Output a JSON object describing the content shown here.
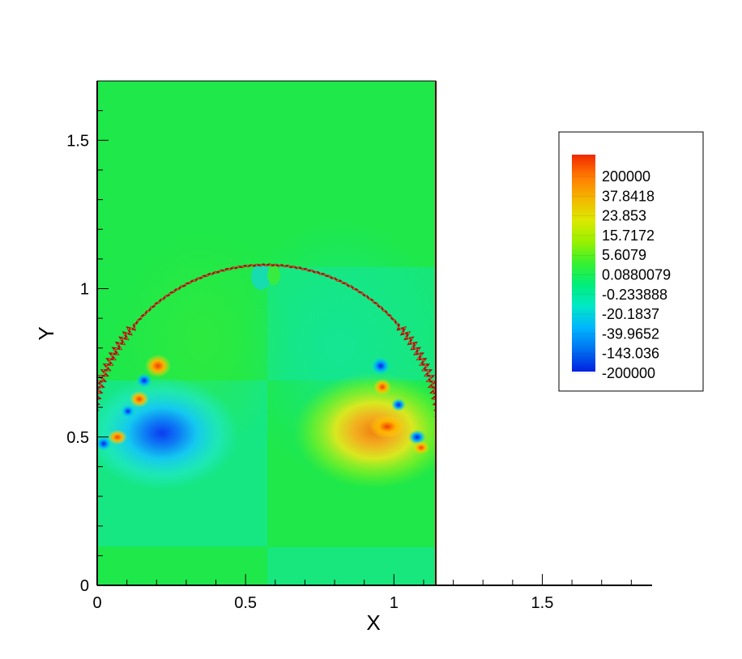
{
  "chart_data": {
    "type": "heatmap",
    "title": "",
    "xlabel": "X",
    "ylabel": "Y",
    "xlim": [
      0,
      1.87
    ],
    "ylim": [
      0,
      1.7
    ],
    "domain_x": [
      0,
      1.14
    ],
    "x_ticks": [
      "0",
      "0.5",
      "1",
      "1.5"
    ],
    "x_tick_values": [
      0,
      0.5,
      1,
      1.5
    ],
    "y_ticks": [
      "0",
      "0.5",
      "1",
      "1.5"
    ],
    "y_tick_values": [
      0,
      0.5,
      1,
      1.5
    ],
    "interface": {
      "shape": "semicircle",
      "center_x": 0.57,
      "center_y": 0.49,
      "radius": 0.59
    },
    "legend": {
      "position": "right",
      "levels": [
        "200000",
        "37.8418",
        "23.853",
        "15.7172",
        "5.6079",
        "0.0880079",
        "-0.233888",
        "-20.1837",
        "-39.9652",
        "-143.036",
        "-200000"
      ],
      "colors": [
        "#f02800",
        "#ff7a00",
        "#f5b400",
        "#dde800",
        "#9af000",
        "#38f030",
        "#00ee7a",
        "#00e8c8",
        "#00b4ff",
        "#0070f0",
        "#0020e0"
      ]
    },
    "background_color": "#1ee84a"
  }
}
